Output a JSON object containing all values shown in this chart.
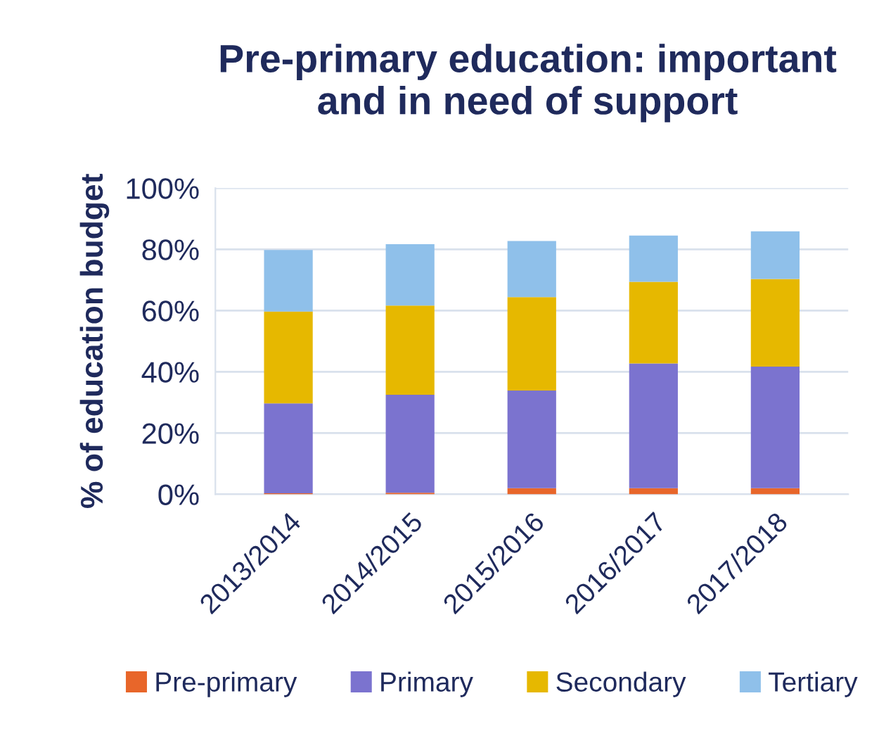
{
  "chart_data": {
    "type": "bar",
    "title": "Pre-primary education: important\nand in need of support",
    "ylabel": "% of education budget",
    "categories": [
      "2013/2014",
      "2014/2015",
      "2015/2016",
      "2016/2017",
      "2017/2018"
    ],
    "stacked": true,
    "series": [
      {
        "name": "Pre-primary",
        "color": "#e8662a",
        "values": [
          0.3,
          0.5,
          2.0,
          2.0,
          2.0
        ]
      },
      {
        "name": "Primary",
        "color": "#7b73cf",
        "values": [
          29.4,
          32.0,
          31.9,
          40.7,
          39.7
        ]
      },
      {
        "name": "Secondary",
        "color": "#e6b800",
        "values": [
          30.0,
          29.1,
          30.5,
          26.7,
          28.6
        ]
      },
      {
        "name": "Tertiary",
        "color": "#8fc0ea",
        "values": [
          20.1,
          20.1,
          18.3,
          15.1,
          15.6
        ]
      }
    ],
    "ylim": [
      0,
      100
    ],
    "yticks": [
      {
        "value": 0,
        "label": "0%"
      },
      {
        "value": 20,
        "label": "20%"
      },
      {
        "value": 40,
        "label": "40%"
      },
      {
        "value": 60,
        "label": "60%"
      },
      {
        "value": 80,
        "label": "80%"
      },
      {
        "value": 100,
        "label": "100%"
      }
    ],
    "grid": "y",
    "legend": "bottom"
  }
}
